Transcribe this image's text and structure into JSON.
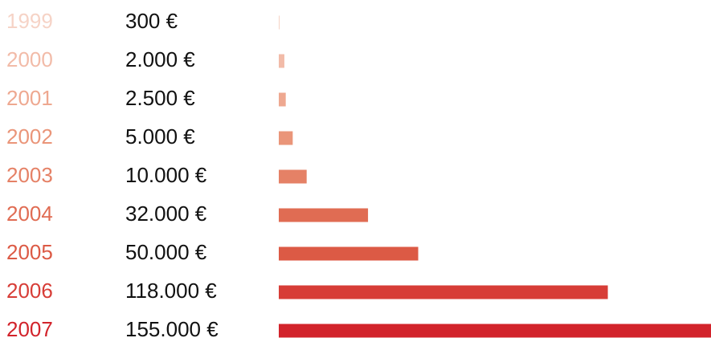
{
  "chart_data": {
    "type": "bar",
    "orientation": "horizontal",
    "categories": [
      "1999",
      "2000",
      "2001",
      "2002",
      "2003",
      "2004",
      "2005",
      "2006",
      "2007"
    ],
    "values": [
      300,
      2000,
      2500,
      5000,
      10000,
      32000,
      50000,
      118000,
      155000
    ],
    "value_labels": [
      "300 €",
      "2.000 €",
      "2.500 €",
      "5.000 €",
      "10.000 €",
      "32.000 €",
      "50.000 €",
      "118.000 €",
      "155.000 €"
    ],
    "colors": [
      "#f6d3c6",
      "#f2bba8",
      "#eea890",
      "#ea9579",
      "#e58166",
      "#e06c53",
      "#dc5a45",
      "#d73d37",
      "#d2232b"
    ],
    "xlim": [
      0,
      155000
    ]
  }
}
